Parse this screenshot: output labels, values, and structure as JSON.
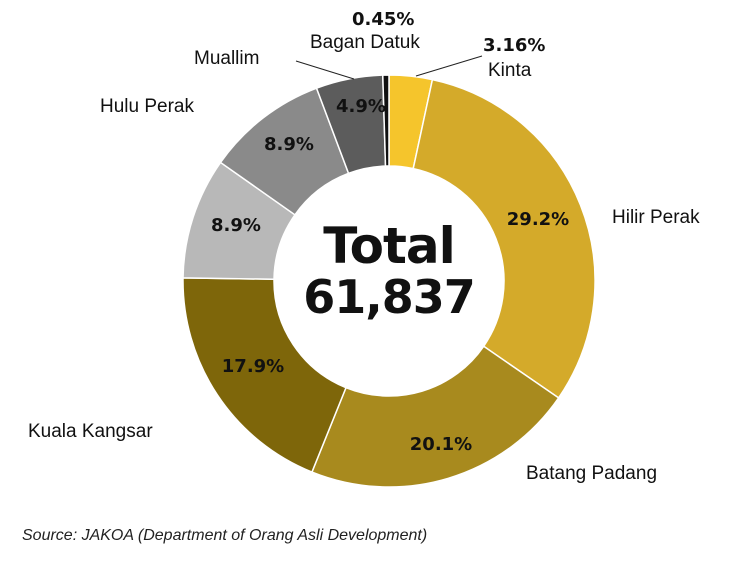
{
  "chart_data": {
    "type": "pie",
    "donut": true,
    "center_title": "Total",
    "center_value": "61,837",
    "slices": [
      {
        "name": "Kinta",
        "value": 3.16,
        "label": "3.16%",
        "color": "#F5C52C"
      },
      {
        "name": "Hilir Perak",
        "value": 29.2,
        "label": "29.2%",
        "color": "#D4AA2A"
      },
      {
        "name": "Batang Padang",
        "value": 20.1,
        "label": "20.1%",
        "color": "#A88A1E"
      },
      {
        "name": "Kuala Kangsar",
        "value": 17.9,
        "label": "17.9%",
        "color": "#7E660A"
      },
      {
        "name": "Hulu Perak",
        "value": 8.9,
        "label": "8.9%",
        "color": "#B8B8B8"
      },
      {
        "name": "Muallim",
        "value": 8.9,
        "label": "8.9%",
        "color": "#8A8A8A"
      },
      {
        "name": "Bagan Datuk",
        "value": 4.9,
        "label": "4.9%",
        "color": "#5C5C5C"
      },
      {
        "name": "",
        "value": 0.45,
        "label": "0.45%",
        "color": "#111111"
      }
    ]
  },
  "source": "Source: JAKOA (Department of Orang Asli Development)"
}
